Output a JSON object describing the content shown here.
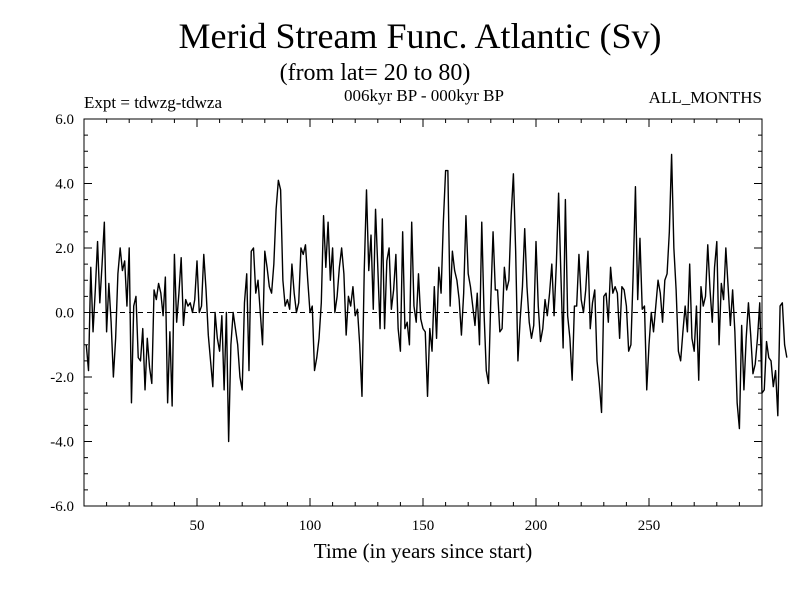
{
  "chart_data": {
    "type": "line",
    "title": "Merid Stream Func. Atlantic (Sv)",
    "subtitle": "(from lat= 20 to 80)",
    "experiment": "Expt = tdwzg-tdwza",
    "period": "006kyr BP - 000kyr BP",
    "months": "ALL_MONTHS",
    "xlabel": "Time (in years since start)",
    "ylabel": "",
    "xlim": [
      0,
      300
    ],
    "ylim": [
      -6.0,
      6.0
    ],
    "x_ticks": [
      50,
      100,
      150,
      200,
      250
    ],
    "x_tick_labels": [
      "50",
      "100",
      "150",
      "200",
      "250"
    ],
    "y_ticks": [
      -6,
      -4,
      -2,
      0,
      2,
      4,
      6
    ],
    "y_tick_labels": [
      "-6.0",
      "-4.0",
      "-2.0",
      "0.0",
      "2.0",
      "4.0",
      "6.0"
    ],
    "zero_line": "dashed",
    "grid": false,
    "series": [
      {
        "name": "Merid Stream Func. Atlantic",
        "x_start": 1,
        "x_step": 1,
        "values": [
          -1.0,
          -1.8,
          1.4,
          -0.6,
          0.7,
          2.2,
          0.3,
          1.5,
          2.8,
          -0.6,
          0.9,
          -0.3,
          -2.0,
          -0.8,
          1.2,
          2.0,
          1.3,
          1.6,
          0.2,
          2.0,
          -2.8,
          0.2,
          0.5,
          -1.4,
          -1.5,
          -0.5,
          -2.4,
          -0.8,
          -1.7,
          -2.2,
          0.7,
          0.4,
          0.9,
          0.6,
          -0.1,
          1.1,
          -2.8,
          -0.6,
          -2.9,
          1.8,
          -0.3,
          0.6,
          1.7,
          -0.4,
          0.4,
          0.2,
          0.3,
          0.0,
          0.4,
          1.6,
          0.0,
          0.2,
          1.8,
          0.7,
          -0.7,
          -1.5,
          -2.3,
          0.0,
          -0.8,
          -1.2,
          -0.1,
          -2.4,
          0.0,
          -4.0,
          -1.0,
          0.0,
          -0.5,
          -1.0,
          -2.0,
          -2.4,
          0.3,
          1.2,
          -1.8,
          1.9,
          2.0,
          0.6,
          1.0,
          0.0,
          -1.0,
          1.9,
          1.4,
          0.8,
          0.6,
          1.5,
          3.2,
          4.1,
          3.8,
          1.0,
          0.2,
          0.4,
          0.1,
          1.5,
          0.6,
          0.0,
          0.3,
          2.0,
          1.8,
          2.1,
          1.0,
          0.0,
          0.2,
          -1.8,
          -1.4,
          -0.8,
          0.3,
          3.0,
          1.4,
          2.8,
          1.0,
          2.0,
          0.0,
          0.5,
          1.4,
          2.0,
          1.2,
          -0.7,
          0.5,
          0.2,
          0.8,
          -0.1,
          0.1,
          -1.0,
          -2.6,
          1.3,
          3.8,
          1.3,
          2.4,
          0.1,
          3.2,
          1.4,
          -0.5,
          2.9,
          -0.5,
          1.6,
          2.0,
          0.1,
          0.7,
          1.8,
          -0.5,
          -1.2,
          2.5,
          -0.5,
          -0.3,
          -1.0,
          2.8,
          0.2,
          -0.3,
          1.2,
          -0.2,
          -0.5,
          -0.6,
          -2.6,
          -0.5,
          -1.2,
          0.8,
          -0.8,
          1.4,
          0.6,
          2.8,
          4.4,
          4.4,
          0.2,
          1.9,
          1.3,
          1.0,
          0.4,
          -0.7,
          0.6,
          3.0,
          1.2,
          0.8,
          0.2,
          -0.4,
          0.6,
          -1.0,
          2.8,
          0.0,
          -1.8,
          -2.2,
          0.4,
          2.5,
          0.7,
          0.7,
          -0.6,
          -0.5,
          1.4,
          0.7,
          1.0,
          3.0,
          4.3,
          1.9,
          -1.5,
          -0.2,
          0.8,
          2.6,
          0.8,
          -0.3,
          -0.8,
          -0.4,
          2.2,
          0.2,
          -0.9,
          -0.5,
          0.4,
          -0.1,
          0.6,
          1.5,
          -0.1,
          1.5,
          3.7,
          1.2,
          -1.1,
          3.5,
          -0.1,
          -0.8,
          -2.1,
          0.2,
          0.2,
          1.8,
          0.4,
          0.0,
          0.7,
          1.9,
          -0.5,
          0.3,
          0.7,
          -1.5,
          -2.2,
          -3.1,
          0.5,
          0.6,
          -0.3,
          1.4,
          0.6,
          0.8,
          0.6,
          -0.8,
          0.8,
          0.7,
          0.2,
          -1.2,
          -1.0,
          1.2,
          3.9,
          0.4,
          2.3,
          0.1,
          0.2,
          -2.4,
          -1.0,
          0.0,
          -0.6,
          0.2,
          1.0,
          0.6,
          -0.3,
          1.0,
          1.2,
          2.5,
          4.9,
          2.0,
          0.7,
          -1.2,
          -1.5,
          -0.6,
          0.2,
          -0.6,
          1.5,
          -0.8,
          -1.2,
          0.2,
          -2.1,
          0.8,
          0.2,
          0.5,
          2.1,
          0.7,
          -0.3,
          1.4,
          2.2,
          -1.0,
          0.9,
          0.4,
          2.0,
          0.8,
          -0.4,
          0.7,
          -0.6,
          -2.8,
          -3.6,
          -0.4,
          -2.4,
          -0.8,
          0.3,
          -0.7,
          -1.9,
          -1.6,
          -0.8,
          0.3,
          -2.5,
          -2.4,
          -0.9,
          -1.4,
          -1.5,
          -2.3,
          -1.8,
          -3.2,
          0.2,
          0.3,
          -1.0,
          -1.4
        ]
      }
    ]
  }
}
